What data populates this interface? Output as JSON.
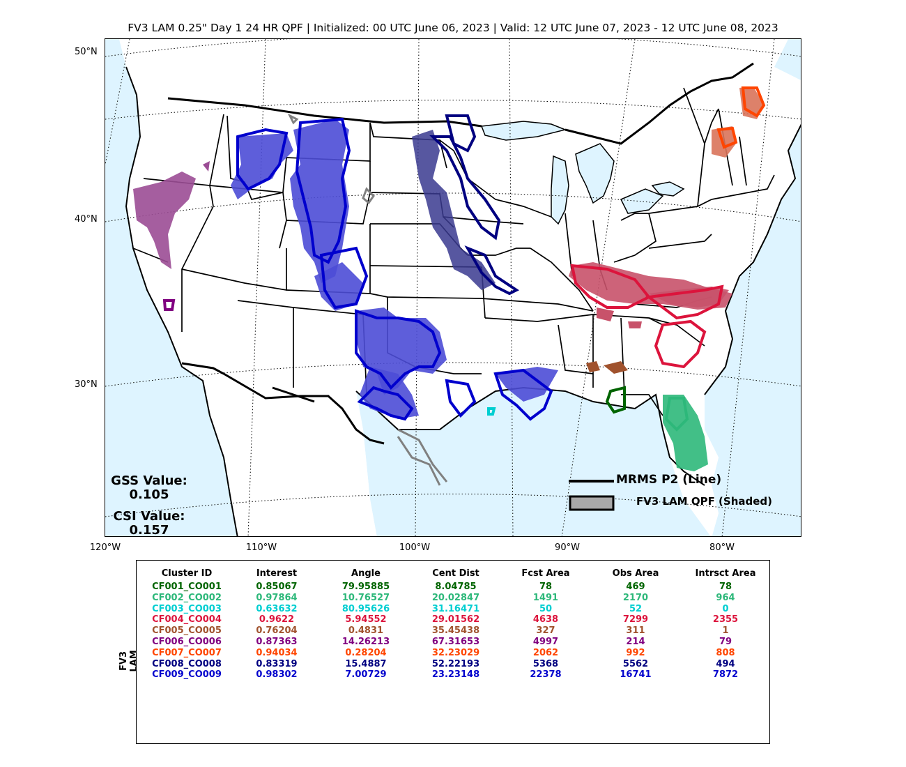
{
  "title": "FV3 LAM 0.25\" Day 1 24 HR QPF | Initialized: 00 UTC June 06, 2023 | Valid: 12 UTC June 07, 2023 - 12 UTC June 08, 2023",
  "lat_labels": [
    "50°N",
    "40°N",
    "30°N"
  ],
  "lon_labels": [
    "120°W",
    "110°W",
    "100°W",
    "90°W",
    "80°W"
  ],
  "stats": {
    "gss_label": "GSS Value:",
    "gss_value": "0.105",
    "csi_label": "CSI Value:",
    "csi_value": "0.157"
  },
  "legend": {
    "line_label": "MRMS P2 (Line)",
    "shaded_label": "FV3 LAM QPF (Shaded)"
  },
  "table": {
    "ylabel": "FV3 LAM",
    "headers": [
      "Cluster ID",
      "Interest",
      "Angle",
      "Cent Dist",
      "Fcst Area",
      "Obs Area",
      "Intrsct Area"
    ],
    "rows": [
      {
        "color": "#006400",
        "cells": [
          "CF001_CO001",
          "0.85067",
          "79.95885",
          "8.04785",
          "78",
          "469",
          "78"
        ]
      },
      {
        "color": "#2db87a",
        "cells": [
          "CF002_CO002",
          "0.97864",
          "10.76527",
          "20.02847",
          "1491",
          "2170",
          "964"
        ]
      },
      {
        "color": "#00ced1",
        "cells": [
          "CF003_CO003",
          "0.63632",
          "80.95626",
          "31.16471",
          "50",
          "52",
          "0"
        ]
      },
      {
        "color": "#dc143c",
        "cells": [
          "CF004_CO004",
          "0.9622",
          "5.94552",
          "29.01562",
          "4638",
          "7299",
          "2355"
        ]
      },
      {
        "color": "#a0522d",
        "cells": [
          "CF005_CO005",
          "0.76204",
          "0.4831",
          "35.45438",
          "327",
          "311",
          "1"
        ]
      },
      {
        "color": "#800080",
        "cells": [
          "CF006_CO006",
          "0.87363",
          "14.26213",
          "67.31653",
          "4997",
          "214",
          "79"
        ]
      },
      {
        "color": "#ff4500",
        "cells": [
          "CF007_CO007",
          "0.94034",
          "0.28204",
          "32.23029",
          "2062",
          "992",
          "808"
        ]
      },
      {
        "color": "#000080",
        "cells": [
          "CF008_CO008",
          "0.83319",
          "15.4887",
          "52.22193",
          "5368",
          "5562",
          "494"
        ]
      },
      {
        "color": "#0000cd",
        "cells": [
          "CF009_CO009",
          "0.98302",
          "7.00729",
          "23.23148",
          "22378",
          "16741",
          "7872"
        ]
      }
    ]
  },
  "colors": {
    "ocean": "#def4ff",
    "mrms_line": "#000000",
    "unmatched": "#a9a9a9"
  }
}
